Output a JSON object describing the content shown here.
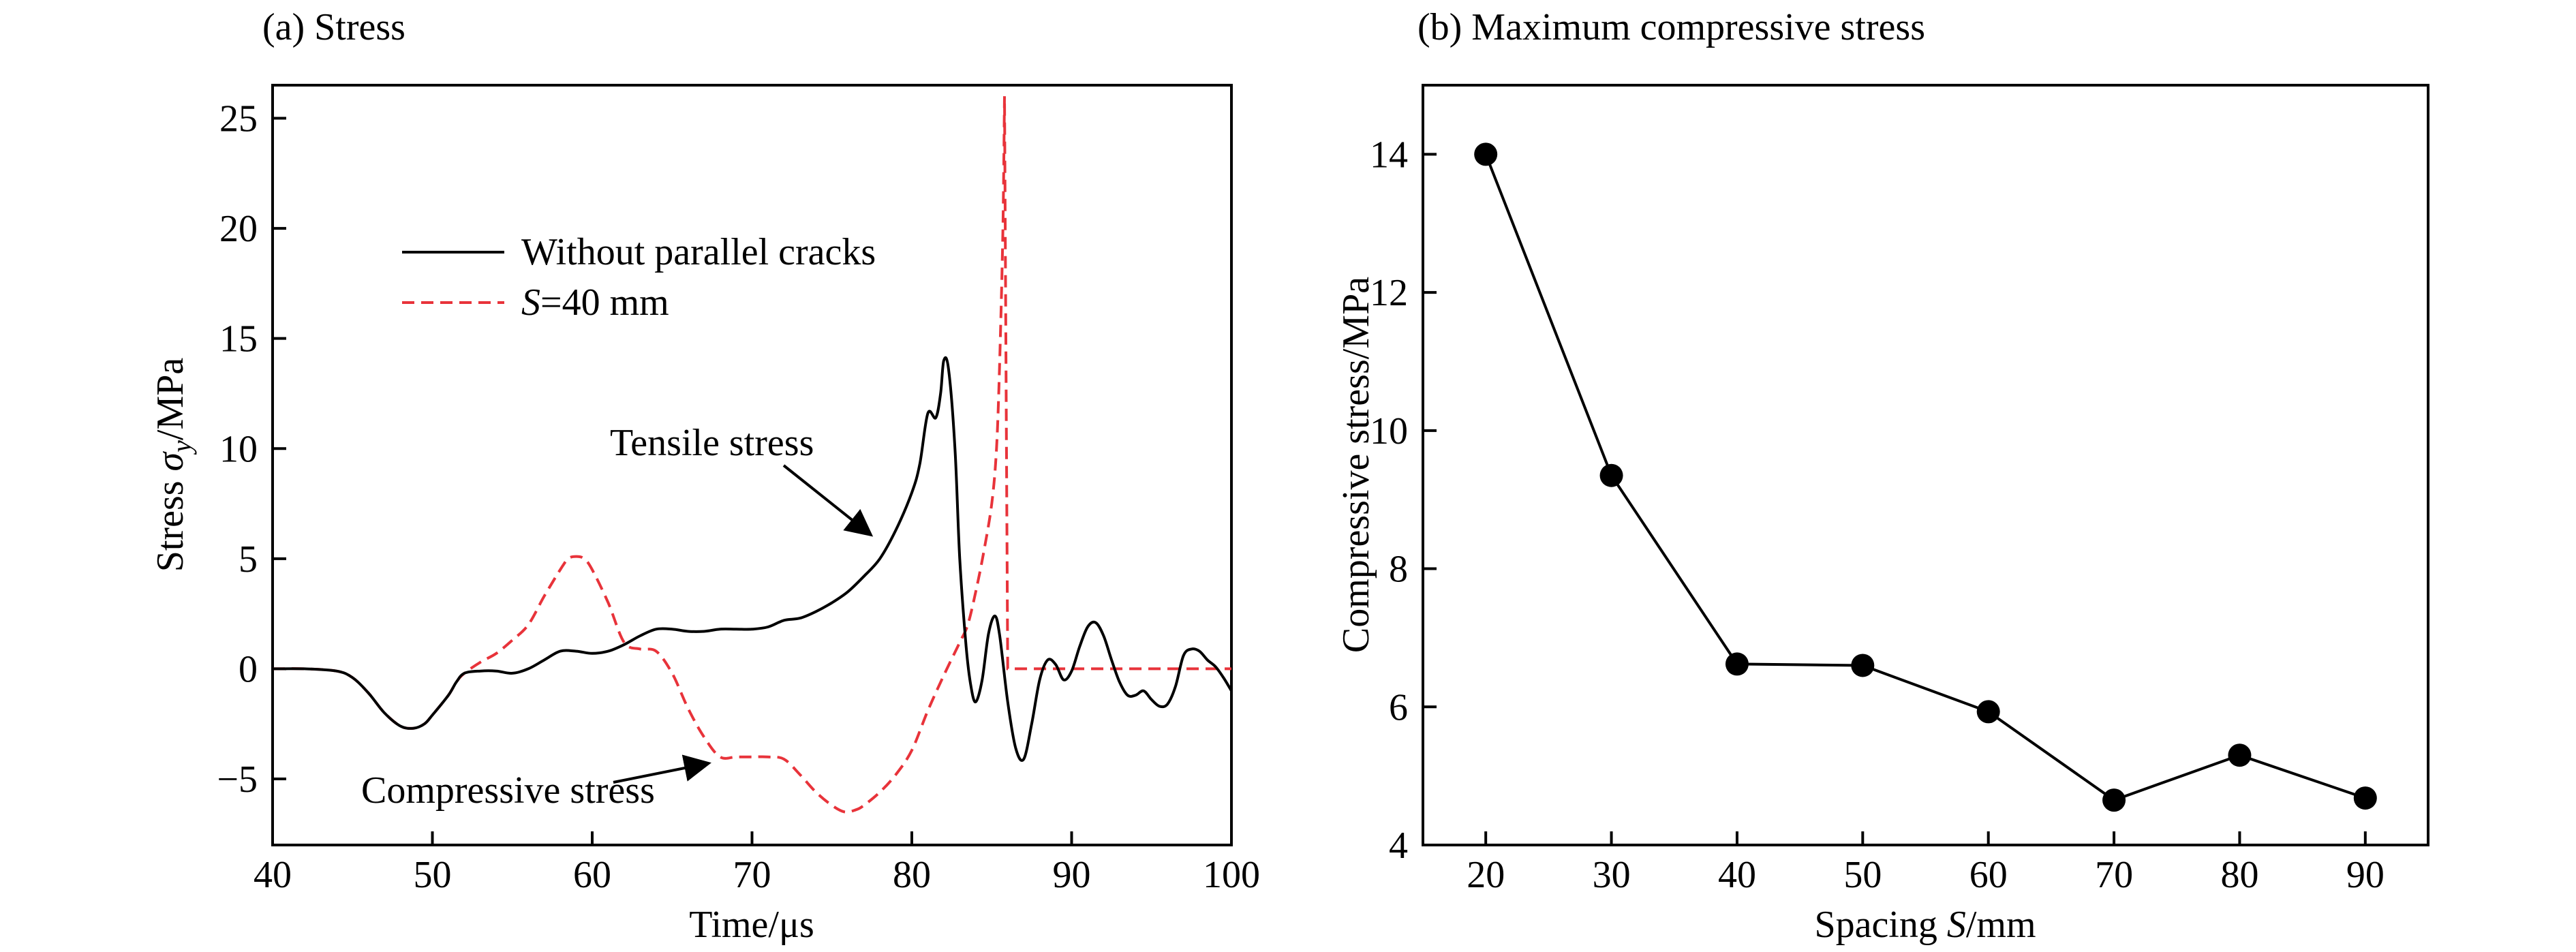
{
  "chart_data": [
    {
      "type": "line",
      "title": "(a) Stress",
      "xlabel": "Time/μs",
      "ylabel_prefix": "Stress ",
      "ylabel_symbol": "σ",
      "ylabel_subscript": "y",
      "ylabel_suffix": "/MPa",
      "xlim": [
        40,
        100
      ],
      "ylim": [
        -8,
        26.5
      ],
      "xticks": [
        "40",
        "50",
        "60",
        "70",
        "80",
        "90",
        "100"
      ],
      "yticks": [
        "-5",
        "0",
        "5",
        "10",
        "15",
        "20",
        "25"
      ],
      "grid": false,
      "legend_position": "upper-left",
      "series": [
        {
          "name": "Without parallel cracks",
          "color": "#000000",
          "dash": "solid",
          "x": [
            40,
            42,
            44,
            45,
            46,
            47,
            48,
            48.8,
            49.5,
            50,
            51,
            51.5,
            52,
            53,
            54,
            55,
            56,
            57,
            58,
            59,
            60,
            61,
            62,
            63,
            64,
            65,
            66,
            67,
            68,
            69,
            70,
            71,
            72,
            73,
            74,
            75,
            76,
            77,
            78,
            79,
            80,
            80.5,
            81,
            81.5,
            81.8,
            82,
            82.3,
            82.7,
            83,
            83.4,
            83.7,
            84,
            84.4,
            84.8,
            85.2,
            85.5,
            86,
            86.5,
            87,
            87.5,
            88,
            88.5,
            89,
            89.5,
            90,
            90.5,
            91,
            91.5,
            92,
            92.5,
            93,
            93.5,
            94,
            94.5,
            95,
            95.5,
            96,
            96.5,
            97,
            97.5,
            98,
            98.5,
            99,
            99.5,
            100
          ],
          "y": [
            0,
            0,
            -0.1,
            -0.4,
            -1.1,
            -2.0,
            -2.6,
            -2.7,
            -2.5,
            -2.1,
            -1.2,
            -0.6,
            -0.2,
            -0.1,
            -0.1,
            -0.2,
            0,
            0.4,
            0.8,
            0.8,
            0.7,
            0.8,
            1.1,
            1.5,
            1.8,
            1.8,
            1.7,
            1.7,
            1.8,
            1.8,
            1.8,
            1.9,
            2.2,
            2.3,
            2.6,
            3.0,
            3.5,
            4.2,
            5.0,
            6.3,
            8.0,
            9.3,
            11.6,
            11.4,
            12.5,
            14.0,
            13.6,
            10.0,
            5.0,
            1.0,
            -0.8,
            -1.5,
            -0.5,
            1.6,
            2.4,
            1.5,
            -1.5,
            -3.6,
            -4.1,
            -2.5,
            -0.5,
            0.4,
            0.2,
            -0.5,
            -0.1,
            1.0,
            1.9,
            2.1,
            1.5,
            0.4,
            -0.6,
            -1.2,
            -1.2,
            -1.0,
            -1.4,
            -1.7,
            -1.6,
            -0.8,
            0.6,
            0.9,
            0.8,
            0.4,
            0.1,
            -0.4,
            -1.0
          ]
        },
        {
          "name": "S=40 mm",
          "name_italic": "S",
          "name_rest": "=40 mm",
          "color": "#e8333a",
          "dash": "dashed",
          "x": [
            40,
            42,
            44,
            45,
            46,
            47,
            48,
            48.8,
            49.5,
            50,
            51,
            51.5,
            52,
            53,
            54,
            55,
            56,
            57,
            58,
            58.5,
            59,
            59.5,
            60,
            61,
            62,
            63,
            64,
            65,
            66,
            67,
            68,
            69,
            70,
            71,
            72,
            73,
            74,
            75,
            75.8,
            76.5,
            77,
            78,
            79,
            80,
            81,
            82,
            83,
            83.5,
            84,
            84.5,
            85,
            85.3,
            85.5,
            85.7,
            85.8,
            86,
            88,
            90,
            92,
            94,
            96,
            98,
            100
          ],
          "y": [
            0,
            0,
            -0.1,
            -0.4,
            -1.1,
            -2.0,
            -2.6,
            -2.7,
            -2.5,
            -2.1,
            -1.2,
            -0.6,
            -0.2,
            0.3,
            0.7,
            1.3,
            2.0,
            3.3,
            4.5,
            5.0,
            5.1,
            5.0,
            4.5,
            3.0,
            1.2,
            0.9,
            0.8,
            -0.2,
            -1.8,
            -3.1,
            -4.0,
            -4.0,
            -4.0,
            -4.0,
            -4.1,
            -4.8,
            -5.6,
            -6.2,
            -6.5,
            -6.4,
            -6.2,
            -5.6,
            -4.8,
            -3.7,
            -1.9,
            -0.3,
            1.2,
            2.0,
            3.5,
            5.3,
            7.5,
            10.0,
            14.0,
            20.0,
            26.0,
            0,
            0,
            0,
            0,
            0,
            0,
            0,
            0
          ]
        }
      ],
      "annotations": [
        "Tensile stress",
        "Compressive stress"
      ]
    },
    {
      "type": "scatter",
      "title": "(b) Maximum compressive stress",
      "xlabel_prefix": "Spacing ",
      "xlabel_italic": "S",
      "xlabel_suffix": "/mm",
      "ylabel": "Compressive stress/MPa",
      "xlim": [
        15,
        95
      ],
      "ylim": [
        4,
        15
      ],
      "xticks": [
        "20",
        "30",
        "40",
        "50",
        "60",
        "70",
        "80",
        "90"
      ],
      "yticks": [
        "4",
        "6",
        "8",
        "10",
        "12",
        "14"
      ],
      "grid": false,
      "series": [
        {
          "color": "#000000",
          "marker": "filled-circle",
          "x": [
            20,
            30,
            40,
            50,
            60,
            70,
            80,
            90
          ],
          "y": [
            14.0,
            9.35,
            6.62,
            6.6,
            5.93,
            4.65,
            5.3,
            4.68
          ]
        }
      ]
    }
  ]
}
